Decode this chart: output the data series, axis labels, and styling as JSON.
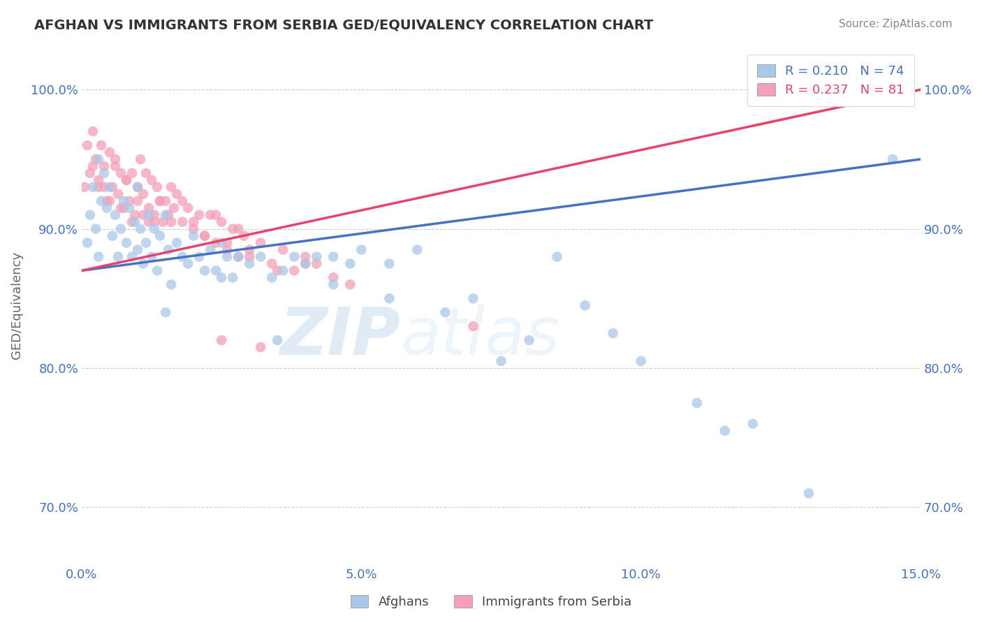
{
  "title": "AFGHAN VS IMMIGRANTS FROM SERBIA GED/EQUIVALENCY CORRELATION CHART",
  "source": "Source: ZipAtlas.com",
  "ylabel": "GED/Equivalency",
  "xlim": [
    0.0,
    15.0
  ],
  "ylim": [
    66.0,
    103.0
  ],
  "xticks": [
    0.0,
    5.0,
    10.0,
    15.0
  ],
  "xtick_labels": [
    "0.0%",
    "5.0%",
    "10.0%",
    "15.0%"
  ],
  "yticks": [
    70.0,
    80.0,
    90.0,
    100.0
  ],
  "ytick_labels": [
    "70.0%",
    "80.0%",
    "90.0%",
    "100.0%"
  ],
  "blue_R": 0.21,
  "blue_N": 74,
  "pink_R": 0.237,
  "pink_N": 81,
  "blue_color": "#A8C8E8",
  "pink_color": "#F4A0B8",
  "blue_line_color": "#4472C4",
  "pink_line_color": "#E8436A",
  "watermark_zip": "ZIP",
  "watermark_atlas": "atlas",
  "legend_label_blue": "Afghans",
  "legend_label_pink": "Immigrants from Serbia",
  "blue_x": [
    0.1,
    0.15,
    0.2,
    0.25,
    0.3,
    0.3,
    0.35,
    0.4,
    0.45,
    0.5,
    0.55,
    0.6,
    0.65,
    0.7,
    0.75,
    0.8,
    0.85,
    0.9,
    0.95,
    1.0,
    1.0,
    1.05,
    1.1,
    1.15,
    1.2,
    1.25,
    1.3,
    1.35,
    1.4,
    1.5,
    1.55,
    1.6,
    1.7,
    1.8,
    1.9,
    2.0,
    2.1,
    2.2,
    2.3,
    2.4,
    2.5,
    2.6,
    2.7,
    2.8,
    3.0,
    3.2,
    3.4,
    3.6,
    3.8,
    4.0,
    4.2,
    4.5,
    4.8,
    5.0,
    5.5,
    6.0,
    6.5,
    7.0,
    7.5,
    8.0,
    9.0,
    10.0,
    11.0,
    12.0,
    1.5,
    2.5,
    3.5,
    4.5,
    5.5,
    8.5,
    9.5,
    11.5,
    13.0,
    14.5
  ],
  "blue_y": [
    89.0,
    91.0,
    93.0,
    90.0,
    95.0,
    88.0,
    92.0,
    94.0,
    91.5,
    93.0,
    89.5,
    91.0,
    88.0,
    90.0,
    92.0,
    89.0,
    91.5,
    88.0,
    90.5,
    93.0,
    88.5,
    90.0,
    87.5,
    89.0,
    91.0,
    88.0,
    90.0,
    87.0,
    89.5,
    91.0,
    88.5,
    86.0,
    89.0,
    88.0,
    87.5,
    89.5,
    88.0,
    87.0,
    88.5,
    87.0,
    89.0,
    88.0,
    86.5,
    88.0,
    87.5,
    88.0,
    86.5,
    87.0,
    88.0,
    87.5,
    88.0,
    88.0,
    87.5,
    88.5,
    87.5,
    88.5,
    84.0,
    85.0,
    80.5,
    82.0,
    84.5,
    80.5,
    77.5,
    76.0,
    84.0,
    86.5,
    82.0,
    86.0,
    85.0,
    88.0,
    82.5,
    75.5,
    71.0,
    95.0
  ],
  "pink_x": [
    0.05,
    0.1,
    0.15,
    0.2,
    0.25,
    0.3,
    0.35,
    0.4,
    0.45,
    0.5,
    0.55,
    0.6,
    0.65,
    0.7,
    0.75,
    0.8,
    0.85,
    0.9,
    0.95,
    1.0,
    1.05,
    1.1,
    1.15,
    1.2,
    1.25,
    1.3,
    1.35,
    1.4,
    1.45,
    1.5,
    1.55,
    1.6,
    1.65,
    1.7,
    1.8,
    1.9,
    2.0,
    2.1,
    2.2,
    2.3,
    2.4,
    2.5,
    2.6,
    2.7,
    2.8,
    2.9,
    3.0,
    3.2,
    3.4,
    3.6,
    3.8,
    4.0,
    4.2,
    4.5,
    4.8,
    0.2,
    0.4,
    0.6,
    0.8,
    1.0,
    1.2,
    1.4,
    1.6,
    1.8,
    2.0,
    2.2,
    2.4,
    2.6,
    2.8,
    3.0,
    3.5,
    4.0,
    0.3,
    0.5,
    0.7,
    0.9,
    1.1,
    1.3,
    2.5,
    3.2,
    7.0
  ],
  "pink_y": [
    93.0,
    96.0,
    94.0,
    97.0,
    95.0,
    93.5,
    96.0,
    94.5,
    92.0,
    95.5,
    93.0,
    94.5,
    92.5,
    94.0,
    91.5,
    93.5,
    92.0,
    94.0,
    91.0,
    93.0,
    95.0,
    92.5,
    94.0,
    91.5,
    93.5,
    91.0,
    93.0,
    92.0,
    90.5,
    92.0,
    91.0,
    93.0,
    91.5,
    92.5,
    90.5,
    91.5,
    90.0,
    91.0,
    89.5,
    91.0,
    89.0,
    90.5,
    88.5,
    90.0,
    88.0,
    89.5,
    88.0,
    89.0,
    87.5,
    88.5,
    87.0,
    88.0,
    87.5,
    86.5,
    86.0,
    94.5,
    93.0,
    95.0,
    93.5,
    92.0,
    90.5,
    92.0,
    90.5,
    92.0,
    90.5,
    89.5,
    91.0,
    89.0,
    90.0,
    88.5,
    87.0,
    87.5,
    93.0,
    92.0,
    91.5,
    90.5,
    91.0,
    90.5,
    82.0,
    81.5,
    83.0
  ]
}
